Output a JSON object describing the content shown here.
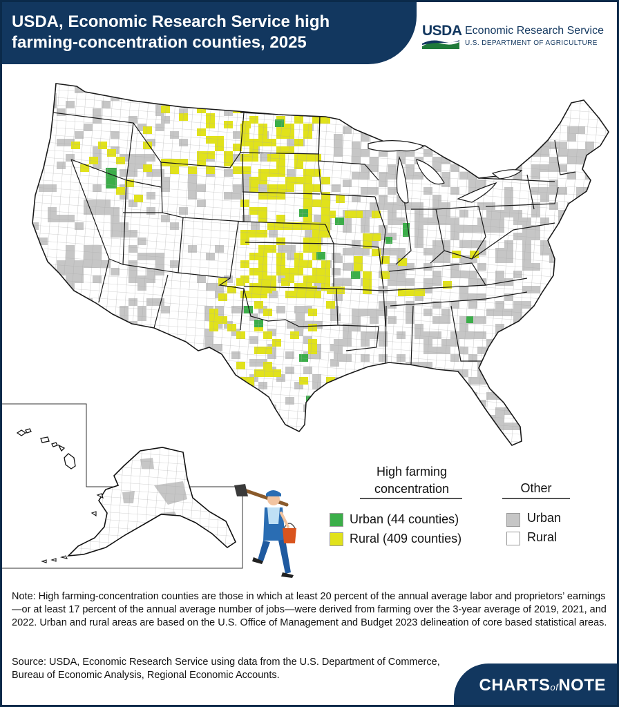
{
  "header": {
    "title": "USDA, Economic Research Service high farming-concentration counties, 2025",
    "logo_text": "USDA",
    "agency_name": "Economic Research Service",
    "department": "U.S. DEPARTMENT OF AGRICULTURE"
  },
  "legend": {
    "high_group_title": "High farming concentration",
    "other_group_title": "Other",
    "items": [
      {
        "label": "Urban (44 counties)",
        "color": "#3bae49"
      },
      {
        "label": "Rural (409 counties)",
        "color": "#e1e21b"
      },
      {
        "label": "Urban",
        "color": "#c6c6c6"
      },
      {
        "label": "Rural",
        "color": "#ffffff"
      }
    ]
  },
  "note": "Note: High farming-concentration counties are those in which at least 20 percent of the annual average labor and proprietors’ earnings—or at least 17 percent of the annual average number of jobs—were derived from farming over the 3-year average of 2019, 2021, and 2022. Urban and rural areas are based on the U.S. Office of Management and Budget 2023 delineation of core based statistical areas.",
  "source": "Source: USDA, Economic Research Service using data from the U.S. Department of Commerce, Bureau of Economic Analysis, Regional Economic Accounts.",
  "footer": {
    "brand_left": "CHARTS",
    "brand_of": "of",
    "brand_right": "NOTE"
  },
  "map": {
    "colors": {
      "high_urban": "#3bae49",
      "high_rural": "#e1e21b",
      "other_urban": "#c6c6c6",
      "other_rural": "#ffffff",
      "border": "#1a1a1a",
      "county": "#9a9a9a"
    },
    "insets": [
      "Hawaii",
      "Alaska"
    ]
  }
}
